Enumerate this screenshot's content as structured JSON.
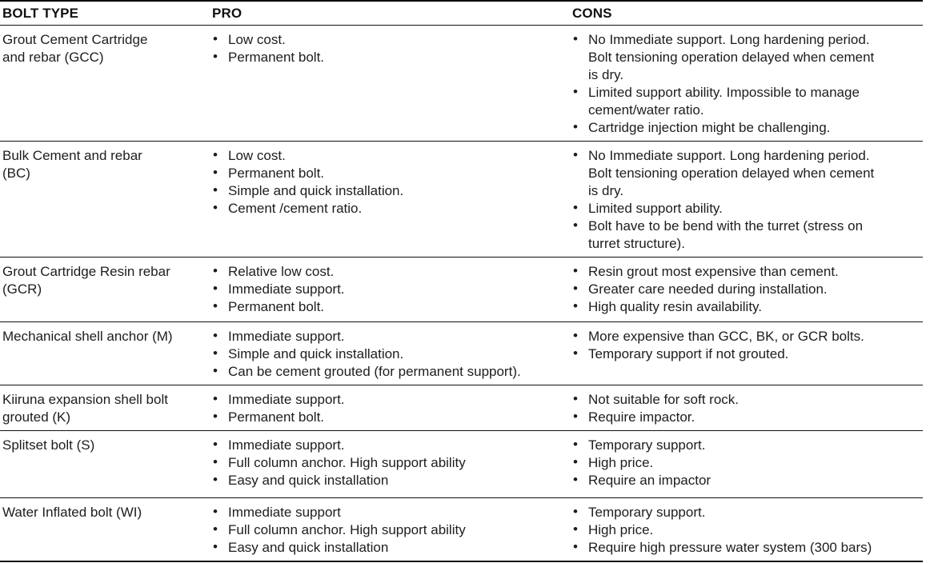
{
  "colors": {
    "background": "#ffffff",
    "text": "#1d1d1b",
    "rule": "#111111"
  },
  "table": {
    "columns": [
      {
        "key": "bolt_type",
        "label": "BOLT TYPE"
      },
      {
        "key": "pro",
        "label": "PRO"
      },
      {
        "key": "cons",
        "label": "CONS"
      }
    ],
    "rows": [
      {
        "bolt_type": "Grout Cement Cartridge and rebar (GCC)",
        "pro": [
          "Low cost.",
          "Permanent bolt."
        ],
        "cons": [
          "No Immediate support. Long hardening period. Bolt tensioning operation delayed when cement is dry.",
          "Limited support ability. Impossible to manage cement/water ratio.",
          "Cartridge injection might be challenging."
        ]
      },
      {
        "bolt_type": "Bulk Cement and rebar (BC)",
        "pro": [
          "Low cost.",
          "Permanent bolt.",
          "Simple and quick installation.",
          "Cement /cement ratio."
        ],
        "cons": [
          "No Immediate support. Long hardening period. Bolt tensioning operation delayed when cement is dry.",
          "Limited support ability.",
          "Bolt have to be bend with the turret (stress on turret structure)."
        ]
      },
      {
        "bolt_type": "Grout Cartridge Resin rebar (GCR)",
        "pro": [
          "Relative low cost.",
          "Immediate support.",
          "Permanent bolt."
        ],
        "cons": [
          "Resin grout most expensive than cement.",
          "Greater care needed during installation.",
          "High quality resin availability."
        ]
      },
      {
        "bolt_type": "Mechanical shell anchor (M)",
        "pro": [
          "Immediate support.",
          "Simple and quick installation.",
          "Can be cement grouted (for permanent support)."
        ],
        "cons": [
          "More expensive than GCC, BK, or GCR bolts.",
          "Temporary support if not grouted."
        ]
      },
      {
        "bolt_type": "Kiiruna expansion shell bolt grouted (K)",
        "pro": [
          "Immediate support.",
          "Permanent bolt."
        ],
        "cons": [
          "Not suitable for soft rock.",
          "Require impactor."
        ]
      },
      {
        "bolt_type": "Splitset bolt (S)",
        "pro": [
          "Immediate support.",
          "Full column anchor. High support ability",
          "Easy and quick installation"
        ],
        "cons": [
          "Temporary support.",
          "High price.",
          "Require an impactor"
        ]
      },
      {
        "bolt_type": "Water Inflated bolt (WI)",
        "pro": [
          "Immediate support",
          "Full column anchor. High support ability",
          "Easy and quick installation"
        ],
        "cons": [
          "Temporary support.",
          "High price.",
          "Require high pressure water system (300 bars)"
        ]
      }
    ]
  }
}
